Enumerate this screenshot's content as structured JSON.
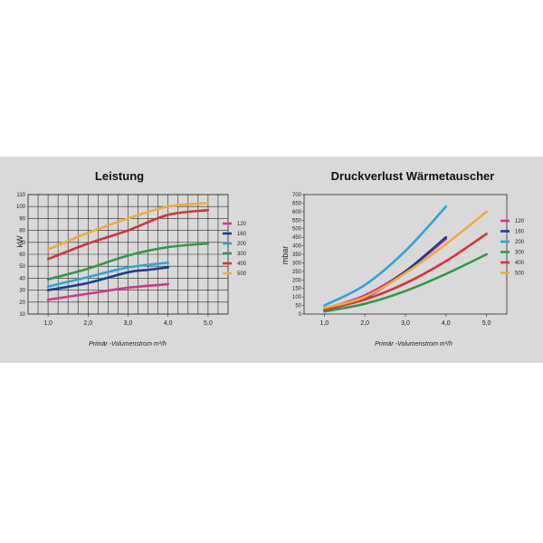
{
  "chart_data": [
    {
      "type": "line",
      "title": "Leistung",
      "xlabel": "Primär -Volumenstrom m³/h",
      "ylabel": "kW",
      "xlim": [
        0.5,
        5.5
      ],
      "ylim": [
        10,
        110
      ],
      "x_ticks": [
        "1,0",
        "2,0",
        "3,0",
        "4,0",
        "5,0"
      ],
      "y_ticks": [
        "10",
        "20",
        "30",
        "40",
        "50",
        "60",
        "70",
        "80",
        "90",
        "100",
        "110"
      ],
      "grid": true,
      "legend_position": "right",
      "series": [
        {
          "name": "120",
          "color": "#d6338f",
          "points": [
            [
              1.0,
              22
            ],
            [
              2.0,
              27
            ],
            [
              3.0,
              32
            ],
            [
              4.0,
              35
            ]
          ]
        },
        {
          "name": "160",
          "color": "#1f3f8f",
          "points": [
            [
              1.0,
              30
            ],
            [
              2.0,
              36
            ],
            [
              3.0,
              45
            ],
            [
              3.5,
              47
            ],
            [
              4.0,
              49
            ]
          ]
        },
        {
          "name": "200",
          "color": "#2aa6d8",
          "points": [
            [
              1.0,
              33
            ],
            [
              2.0,
              41
            ],
            [
              3.0,
              49
            ],
            [
              4.0,
              53
            ]
          ]
        },
        {
          "name": "300",
          "color": "#2f9a4a",
          "points": [
            [
              1.0,
              39
            ],
            [
              2.0,
              48
            ],
            [
              3.0,
              59
            ],
            [
              4.0,
              66
            ],
            [
              5.0,
              69
            ]
          ]
        },
        {
          "name": "400",
          "color": "#d8323b",
          "points": [
            [
              1.0,
              56
            ],
            [
              2.0,
              69
            ],
            [
              3.0,
              80
            ],
            [
              4.0,
              93
            ],
            [
              5.0,
              97
            ]
          ]
        },
        {
          "name": "500",
          "color": "#f2aa3c",
          "points": [
            [
              1.0,
              64
            ],
            [
              2.0,
              78
            ],
            [
              3.0,
              90
            ],
            [
              4.0,
              100
            ],
            [
              5.0,
              103
            ]
          ]
        }
      ]
    },
    {
      "type": "line",
      "title": "Druckverlust Wärmetauscher",
      "xlabel": "Primär -Volumenstrom m³/h",
      "ylabel": "mbar",
      "xlim": [
        0.5,
        5.5
      ],
      "ylim": [
        0,
        700
      ],
      "x_ticks": [
        "1,0",
        "2,0",
        "3,0",
        "4,0",
        "5,0"
      ],
      "y_ticks": [
        "0",
        "50",
        "100",
        "150",
        "200",
        "250",
        "300",
        "350",
        "400",
        "450",
        "500",
        "550",
        "600",
        "650",
        "700"
      ],
      "grid": false,
      "legend_position": "right",
      "series": [
        {
          "name": "120",
          "color": "#d6338f",
          "points": [
            [
              1.0,
              30
            ],
            [
              2.0,
              110
            ],
            [
              3.0,
              250
            ],
            [
              4.0,
              440
            ]
          ]
        },
        {
          "name": "160",
          "color": "#1f3f8f",
          "points": [
            [
              1.0,
              25
            ],
            [
              2.0,
              95
            ],
            [
              3.0,
              250
            ],
            [
              4.0,
              450
            ]
          ]
        },
        {
          "name": "200",
          "color": "#2aa6d8",
          "points": [
            [
              1.0,
              50
            ],
            [
              2.0,
              170
            ],
            [
              3.0,
              370
            ],
            [
              4.0,
              630
            ]
          ]
        },
        {
          "name": "300",
          "color": "#2f9a4a",
          "points": [
            [
              1.0,
              15
            ],
            [
              2.0,
              60
            ],
            [
              3.0,
              135
            ],
            [
              4.0,
              235
            ],
            [
              5.0,
              350
            ]
          ]
        },
        {
          "name": "400",
          "color": "#d8323b",
          "points": [
            [
              1.0,
              25
            ],
            [
              2.0,
              85
            ],
            [
              3.0,
              180
            ],
            [
              4.0,
              310
            ],
            [
              5.0,
              470
            ]
          ]
        },
        {
          "name": "500",
          "color": "#f2aa3c",
          "points": [
            [
              1.0,
              35
            ],
            [
              2.0,
              100
            ],
            [
              3.0,
              240
            ],
            [
              4.0,
              410
            ],
            [
              5.0,
              600
            ]
          ]
        }
      ]
    }
  ]
}
